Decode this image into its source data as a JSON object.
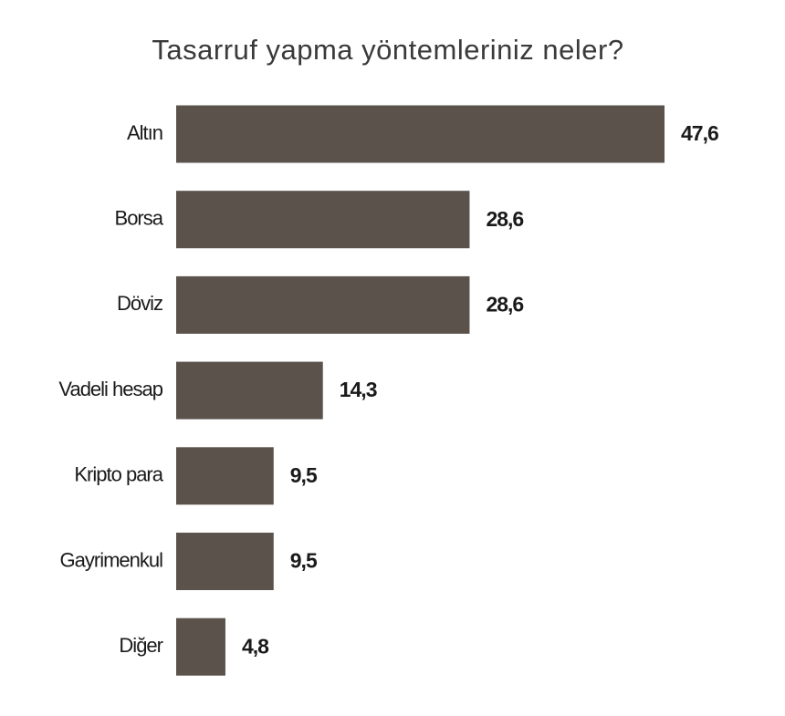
{
  "chart_data": {
    "type": "bar",
    "orientation": "horizontal",
    "title": "Tasarruf yapma yöntemleriniz neler?",
    "categories": [
      "Altın",
      "Borsa",
      "Döviz",
      "Vadeli hesap",
      "Kripto para",
      "Gayrimenkul",
      "Diğer"
    ],
    "values": [
      47.6,
      28.6,
      28.6,
      14.3,
      9.5,
      9.5,
      4.8
    ],
    "value_labels": [
      "47,6",
      "28,6",
      "28,6",
      "14,3",
      "9,5",
      "9,5",
      "4,8"
    ],
    "color": "#5a524b"
  }
}
